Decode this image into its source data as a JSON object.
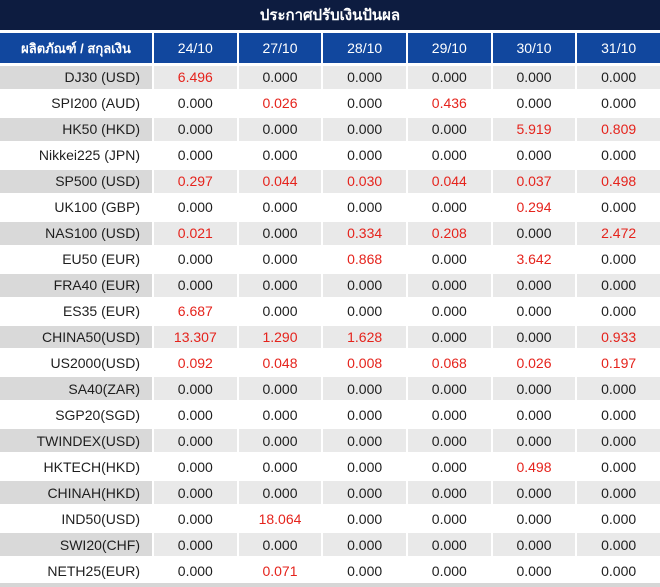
{
  "title": "ประกาศปรับเงินปันผล",
  "table": {
    "product_header": "ผลิตภัณฑ์ / สกุลเงิน",
    "date_columns": [
      "24/10",
      "27/10",
      "28/10",
      "29/10",
      "30/10",
      "31/10"
    ],
    "zero_display": "0.000",
    "rows": [
      {
        "label": "DJ30 (USD)",
        "values": [
          "6.496",
          "0.000",
          "0.000",
          "0.000",
          "0.000",
          "0.000"
        ]
      },
      {
        "label": "SPI200 (AUD)",
        "values": [
          "0.000",
          "0.026",
          "0.000",
          "0.436",
          "0.000",
          "0.000"
        ]
      },
      {
        "label": "HK50 (HKD)",
        "values": [
          "0.000",
          "0.000",
          "0.000",
          "0.000",
          "5.919",
          "0.809"
        ]
      },
      {
        "label": "Nikkei225 (JPN)",
        "values": [
          "0.000",
          "0.000",
          "0.000",
          "0.000",
          "0.000",
          "0.000"
        ]
      },
      {
        "label": "SP500 (USD)",
        "values": [
          "0.297",
          "0.044",
          "0.030",
          "0.044",
          "0.037",
          "0.498"
        ]
      },
      {
        "label": "UK100 (GBP)",
        "values": [
          "0.000",
          "0.000",
          "0.000",
          "0.000",
          "0.294",
          "0.000"
        ]
      },
      {
        "label": "NAS100 (USD)",
        "values": [
          "0.021",
          "0.000",
          "0.334",
          "0.208",
          "0.000",
          "2.472"
        ]
      },
      {
        "label": "EU50 (EUR)",
        "values": [
          "0.000",
          "0.000",
          "0.868",
          "0.000",
          "3.642",
          "0.000"
        ]
      },
      {
        "label": "FRA40 (EUR)",
        "values": [
          "0.000",
          "0.000",
          "0.000",
          "0.000",
          "0.000",
          "0.000"
        ]
      },
      {
        "label": "ES35 (EUR)",
        "values": [
          "6.687",
          "0.000",
          "0.000",
          "0.000",
          "0.000",
          "0.000"
        ]
      },
      {
        "label": "CHINA50(USD)",
        "values": [
          "13.307",
          "1.290",
          "1.628",
          "0.000",
          "0.000",
          "0.933"
        ]
      },
      {
        "label": "US2000(USD)",
        "values": [
          "0.092",
          "0.048",
          "0.008",
          "0.068",
          "0.026",
          "0.197"
        ]
      },
      {
        "label": "SA40(ZAR)",
        "values": [
          "0.000",
          "0.000",
          "0.000",
          "0.000",
          "0.000",
          "0.000"
        ]
      },
      {
        "label": "SGP20(SGD)",
        "values": [
          "0.000",
          "0.000",
          "0.000",
          "0.000",
          "0.000",
          "0.000"
        ]
      },
      {
        "label": "TWINDEX(USD)",
        "values": [
          "0.000",
          "0.000",
          "0.000",
          "0.000",
          "0.000",
          "0.000"
        ]
      },
      {
        "label": "HKTECH(HKD)",
        "values": [
          "0.000",
          "0.000",
          "0.000",
          "0.000",
          "0.498",
          "0.000"
        ]
      },
      {
        "label": "CHINAH(HKD)",
        "values": [
          "0.000",
          "0.000",
          "0.000",
          "0.000",
          "0.000",
          "0.000"
        ]
      },
      {
        "label": "IND50(USD)",
        "values": [
          "0.000",
          "18.064",
          "0.000",
          "0.000",
          "0.000",
          "0.000"
        ]
      },
      {
        "label": "SWI20(CHF)",
        "values": [
          "0.000",
          "0.000",
          "0.000",
          "0.000",
          "0.000",
          "0.000"
        ]
      },
      {
        "label": "NETH25(EUR)",
        "values": [
          "0.000",
          "0.071",
          "0.000",
          "0.000",
          "0.000",
          "0.000"
        ]
      }
    ]
  },
  "colors": {
    "title_bar_bg": "#0d1c40",
    "header_bg": "#11479e",
    "row_alt_bg": "#e9e9e9",
    "row_alt_label_bg": "#d9d9d9",
    "row_bg": "#ffffff",
    "value_zero": "#1e1e1e",
    "value_nonzero": "#e5231c"
  }
}
